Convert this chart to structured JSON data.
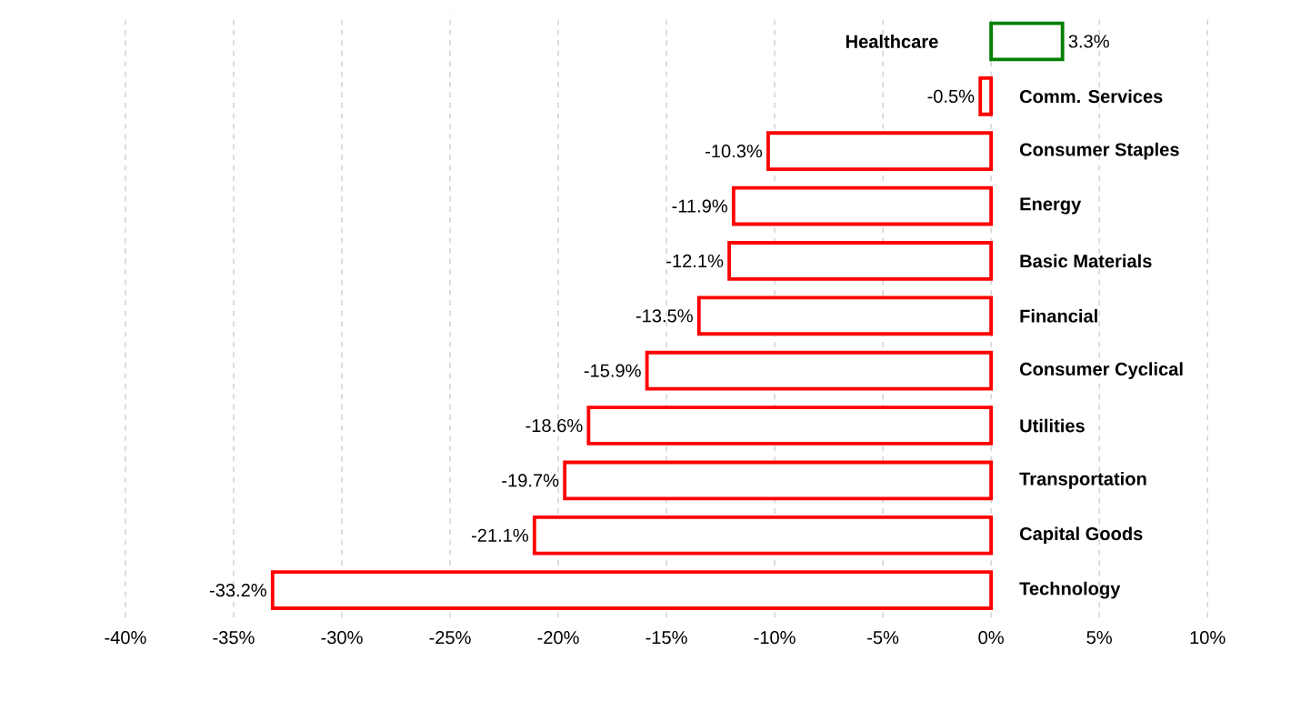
{
  "chart_data": {
    "type": "bar",
    "orientation": "horizontal",
    "categories": [
      "Healthcare",
      "Comm. Services",
      "Consumer Staples",
      "Energy",
      "Basic Materials",
      "Financial",
      "Consumer Cyclical",
      "Utilities",
      "Transportation",
      "Capital Goods",
      "Technology"
    ],
    "values": [
      3.3,
      -0.5,
      -10.3,
      -11.9,
      -12.1,
      -13.5,
      -15.9,
      -18.6,
      -19.7,
      -21.1,
      -33.2
    ],
    "value_labels": [
      "3.3%",
      "-0.5%",
      "-10.3%",
      "-11.9%",
      "-12.1%",
      "-13.5%",
      "-15.9%",
      "-18.6%",
      "-19.7%",
      "-21.1%",
      "-33.2%"
    ],
    "colors": [
      "#008000",
      "#ff0000",
      "#ff0000",
      "#ff0000",
      "#ff0000",
      "#ff0000",
      "#ff0000",
      "#ff0000",
      "#ff0000",
      "#ff0000",
      "#ff0000"
    ],
    "xlim": [
      -40,
      10
    ],
    "xticks": [
      {
        "value": -40,
        "label": "-40%"
      },
      {
        "value": -35,
        "label": "-35%"
      },
      {
        "value": -30,
        "label": "-30%"
      },
      {
        "value": -25,
        "label": "-25%"
      },
      {
        "value": -20,
        "label": "-20%"
      },
      {
        "value": -15,
        "label": "-15%"
      },
      {
        "value": -10,
        "label": "-10%"
      },
      {
        "value": -5,
        "label": "-5%"
      },
      {
        "value": 0,
        "label": "0%"
      },
      {
        "value": 5,
        "label": "5%"
      },
      {
        "value": 10,
        "label": "10%"
      }
    ],
    "grid": "x"
  }
}
